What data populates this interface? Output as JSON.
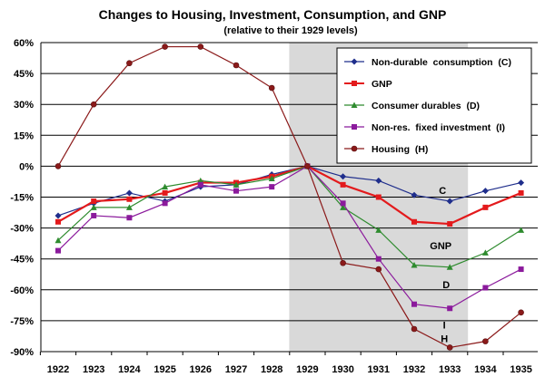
{
  "chart_data": {
    "type": "line",
    "title": "Changes to Housing, Investment, Consumption, and GNP",
    "subtitle": "(relative to their 1929 levels)",
    "xlabel": "",
    "ylabel": "",
    "ylim": [
      -90,
      60
    ],
    "ytick_values": [
      60,
      45,
      30,
      15,
      0,
      -15,
      -30,
      -45,
      -60,
      -75,
      -90
    ],
    "ytick_labels": [
      "60%",
      "45%",
      "30%",
      "15%",
      "0%",
      "-15%",
      "-30%",
      "-45%",
      "-60%",
      "-75%",
      "-90%"
    ],
    "categories": [
      "1922",
      "1923",
      "1924",
      "1925",
      "1926",
      "1927",
      "1928",
      "1929",
      "1930",
      "1931",
      "1932",
      "1933",
      "1934",
      "1935"
    ],
    "shaded_region": {
      "from": "1929",
      "to": "1933"
    },
    "grid": true,
    "legend_position": "top-right",
    "series": [
      {
        "name": "Non-durable  consumption  (C)",
        "color": "#1f2e8c",
        "marker": "diamond",
        "end_label": "C",
        "end_label_at": "1933",
        "values": [
          -24,
          -18,
          -13,
          -17,
          -10,
          -9,
          -4,
          0,
          -5,
          -7,
          -14,
          -17,
          -12,
          -8
        ]
      },
      {
        "name": "GNP",
        "color": "#e31a1c",
        "marker": "square",
        "end_label": "GNP",
        "end_label_at": "1933",
        "values": [
          -27,
          -17,
          -16,
          -13,
          -8,
          -8,
          -5,
          0,
          -9,
          -15,
          -27,
          -28,
          -20,
          -13
        ]
      },
      {
        "name": "Consumer durables  (D)",
        "color": "#2e8b2e",
        "marker": "triangle",
        "end_label": "D",
        "end_label_at": "1933",
        "values": [
          -36,
          -20,
          -20,
          -10,
          -7,
          -9,
          -6,
          0,
          -20,
          -31,
          -48,
          -49,
          -42,
          -31
        ]
      },
      {
        "name": "Non-res.  fixed investment  (I)",
        "color": "#8b1a9c",
        "marker": "square",
        "end_label": "I",
        "end_label_at": "1933",
        "values": [
          -41,
          -24,
          -25,
          -18,
          -9,
          -12,
          -10,
          0,
          -18,
          -45,
          -67,
          -69,
          -59,
          -50
        ]
      },
      {
        "name": "Housing  (H)",
        "color": "#8b1a1a",
        "marker": "circle",
        "end_label": "H",
        "end_label_at": "1933",
        "values": [
          0,
          30,
          50,
          58,
          58,
          49,
          38,
          0,
          -47,
          -50,
          -79,
          -88,
          -85,
          -71
        ]
      }
    ]
  }
}
